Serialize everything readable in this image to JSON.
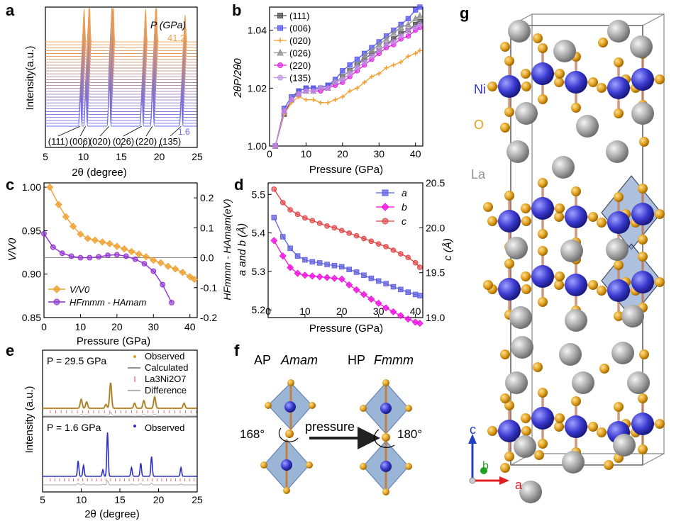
{
  "panel_letters": {
    "a": "a",
    "b": "b",
    "c": "c",
    "d": "d",
    "e": "e",
    "f": "f",
    "g": "g"
  },
  "chart_data": [
    {
      "panel": "a",
      "type": "line",
      "description_visible": "stacked XRD patterns",
      "xlabel": "2θ (degree)",
      "ylabel": "Intensity(a.u.)",
      "xlim": [
        5,
        25
      ],
      "xticks": [
        5,
        10,
        15,
        20,
        25
      ],
      "legend_title": "P (GPa)",
      "pressure_top": "41.2",
      "pressure_bottom": "1.6",
      "peak_labels": [
        "(111)",
        "(006)",
        "(020)",
        "(026)",
        "(220)",
        "(135)"
      ],
      "peak_positions": [
        9.6,
        10.3,
        13.4,
        17.7,
        19.1,
        22.9
      ],
      "colors": {
        "low": "#6a6af0",
        "high": "#f0a050"
      }
    },
    {
      "panel": "b",
      "type": "line",
      "xlabel": "Pressure (GPa)",
      "ylabel": "2θP/2θ0",
      "xlim": [
        0,
        42
      ],
      "ylim": [
        1.0,
        1.048
      ],
      "xticks": [
        0,
        10,
        20,
        30,
        40
      ],
      "yticks": [
        1.0,
        1.02,
        1.04
      ],
      "ytick_labels": [
        "1.00",
        "1.02",
        "1.04"
      ],
      "x": [
        1.6,
        4,
        6,
        8,
        10,
        12,
        14,
        16,
        18,
        20,
        22,
        24,
        26,
        28,
        30,
        32,
        34,
        36,
        38,
        40,
        41.2
      ],
      "series": [
        {
          "name": "(111)",
          "color": "#505050",
          "marker": "square",
          "values": [
            1.0,
            1.011,
            1.016,
            1.019,
            1.02,
            1.02,
            1.02,
            1.021,
            1.022,
            1.024,
            1.026,
            1.028,
            1.03,
            1.032,
            1.033,
            1.035,
            1.037,
            1.039,
            1.04,
            1.042,
            1.043
          ]
        },
        {
          "name": "(006)",
          "color": "#5a5af0",
          "marker": "square",
          "values": [
            1.0,
            1.013,
            1.017,
            1.019,
            1.02,
            1.02,
            1.02,
            1.021,
            1.023,
            1.026,
            1.028,
            1.03,
            1.032,
            1.034,
            1.036,
            1.038,
            1.04,
            1.042,
            1.044,
            1.047,
            1.048
          ]
        },
        {
          "name": "(020)",
          "color": "#f0a030",
          "marker": "star",
          "values": [
            1.0,
            1.011,
            1.015,
            1.017,
            1.016,
            1.016,
            1.015,
            1.015,
            1.016,
            1.017,
            1.019,
            1.02,
            1.022,
            1.024,
            1.025,
            1.027,
            1.028,
            1.029,
            1.031,
            1.032,
            1.033
          ]
        },
        {
          "name": "(026)",
          "color": "#909090",
          "marker": "triangle",
          "values": [
            1.0,
            1.012,
            1.016,
            1.018,
            1.019,
            1.019,
            1.02,
            1.02,
            1.022,
            1.024,
            1.026,
            1.028,
            1.031,
            1.033,
            1.035,
            1.037,
            1.039,
            1.041,
            1.042,
            1.044,
            1.045
          ]
        },
        {
          "name": "(220)",
          "color": "#e020e0",
          "marker": "circle",
          "values": [
            1.0,
            1.012,
            1.016,
            1.018,
            1.019,
            1.019,
            1.019,
            1.02,
            1.021,
            1.022,
            1.024,
            1.026,
            1.028,
            1.03,
            1.032,
            1.034,
            1.035,
            1.037,
            1.038,
            1.04,
            1.041
          ]
        },
        {
          "name": "(135)",
          "color": "#c090e8",
          "marker": "circle",
          "values": [
            1.0,
            1.012,
            1.016,
            1.018,
            1.019,
            1.019,
            1.02,
            1.02,
            1.022,
            1.023,
            1.025,
            1.027,
            1.029,
            1.031,
            1.033,
            1.035,
            1.036,
            1.038,
            1.04,
            1.041,
            1.042
          ]
        }
      ]
    },
    {
      "panel": "c",
      "type": "line",
      "xlabel": "Pressure (GPa)",
      "ylabel_left": "V/V0",
      "ylabel_right": "HFmmm - HAmam(eV)",
      "xlim": [
        0,
        42
      ],
      "ylim_left": [
        0.85,
        1.005
      ],
      "ylim_right": [
        -0.2,
        0.25
      ],
      "xticks": [
        0,
        10,
        20,
        30,
        40
      ],
      "yticks_left": [
        0.85,
        0.9,
        0.95,
        1.0
      ],
      "ytick_labels_left": [
        "0.85",
        "0.90",
        "0.95",
        "1.00"
      ],
      "yticks_right": [
        -0.2,
        -0.1,
        0.0,
        0.1,
        0.2
      ],
      "ytick_labels_right": [
        "-0.2",
        "-0.1",
        "0.0",
        "0.1",
        "0.2"
      ],
      "series": [
        {
          "name": "V/V0",
          "axis": "left",
          "color": "#f0a030",
          "marker": "diamond",
          "x": [
            1.6,
            4,
            6,
            8,
            10,
            12,
            14,
            16,
            18,
            20,
            22,
            24,
            26,
            28,
            30,
            32,
            34,
            36,
            38,
            40,
            41.2
          ],
          "values": [
            1.0,
            0.98,
            0.966,
            0.955,
            0.946,
            0.941,
            0.939,
            0.937,
            0.935,
            0.932,
            0.929,
            0.926,
            0.923,
            0.92,
            0.916,
            0.913,
            0.909,
            0.906,
            0.902,
            0.897,
            0.894
          ]
        },
        {
          "name": "HFmmm - HAmam",
          "axis": "right",
          "color": "#9030d0",
          "marker": "circle",
          "x": [
            0,
            2.5,
            5,
            7.5,
            10,
            12.5,
            15,
            17.5,
            20,
            22.5,
            25,
            27.5,
            30,
            32.5,
            35
          ],
          "values": [
            0.08,
            0.035,
            0.015,
            0.005,
            0.0,
            0.0,
            0.003,
            0.008,
            0.01,
            0.005,
            -0.005,
            -0.02,
            -0.045,
            -0.09,
            -0.15
          ]
        }
      ],
      "reference_line": 0.0
    },
    {
      "panel": "d",
      "type": "line",
      "xlabel": "Pressure (GPa)",
      "ylabel_left": "a and b (Å)",
      "ylabel_right": "c (Å)",
      "xlim": [
        0,
        42
      ],
      "ylim_left": [
        5.18,
        5.53
      ],
      "ylim_right": [
        19.0,
        20.5
      ],
      "xticks": [
        0,
        10,
        20,
        30,
        40
      ],
      "yticks_left": [
        5.2,
        5.3,
        5.4,
        5.5
      ],
      "ytick_labels_left": [
        "5.2",
        "5.3",
        "5.4",
        "5.5"
      ],
      "yticks_right": [
        19.0,
        19.5,
        20.0,
        20.5
      ],
      "ytick_labels_right": [
        "19.0",
        "19.5",
        "20.0",
        "20.5"
      ],
      "x": [
        1.6,
        4,
        6,
        8,
        10,
        12,
        14,
        16,
        18,
        20,
        22,
        24,
        26,
        28,
        30,
        32,
        34,
        36,
        38,
        40,
        41.2
      ],
      "series": [
        {
          "name": "a",
          "axis": "left",
          "color": "#6060e0",
          "marker": "square",
          "values": [
            5.44,
            5.39,
            5.36,
            5.34,
            5.33,
            5.325,
            5.322,
            5.318,
            5.315,
            5.312,
            5.305,
            5.298,
            5.29,
            5.282,
            5.275,
            5.268,
            5.26,
            5.253,
            5.246,
            5.24,
            5.237
          ]
        },
        {
          "name": "b",
          "axis": "left",
          "color": "#f010e0",
          "marker": "diamond",
          "values": [
            5.38,
            5.34,
            5.31,
            5.295,
            5.29,
            5.288,
            5.286,
            5.284,
            5.282,
            5.28,
            5.265,
            5.252,
            5.24,
            5.228,
            5.217,
            5.205,
            5.195,
            5.185,
            5.176,
            5.168,
            5.165
          ]
        },
        {
          "name": "c",
          "axis": "right",
          "color": "#e04040",
          "marker": "circle",
          "values": [
            20.43,
            20.28,
            20.2,
            20.15,
            20.11,
            20.08,
            20.05,
            20.02,
            20.0,
            19.97,
            19.94,
            19.91,
            19.88,
            19.85,
            19.82,
            19.79,
            19.75,
            19.71,
            19.67,
            19.61,
            19.56
          ]
        }
      ]
    },
    {
      "panel": "e",
      "type": "line",
      "xlabel": "2θ (degree)",
      "ylabel": "Intensity (a.u.)",
      "xlim": [
        5,
        25
      ],
      "xticks": [
        5,
        10,
        15,
        20,
        25
      ],
      "top": {
        "pressure_label": "P = 29.5 GPa",
        "legend": [
          "Observed",
          "Calculated",
          "La3Ni2O7",
          "Difference"
        ],
        "colors": {
          "observed": "#e0a020",
          "calculated": "#707070",
          "ticks": "#e04040",
          "difference": "#999999"
        }
      },
      "bottom": {
        "pressure_label": "P = 1.6 GPa",
        "legend": [
          "Observed"
        ],
        "colors": {
          "observed": "#3030c0"
        }
      },
      "peak_positions": [
        9.6,
        10.3,
        12.8,
        13.4,
        16.5,
        17.7,
        19.1,
        22.9
      ]
    }
  ],
  "panel_f": {
    "left_phase": "AP",
    "left_group": "Amam",
    "right_phase": "HP",
    "right_group": "Fmmm",
    "left_angle": "168°",
    "right_angle": "180°",
    "arrow_label": "pressure"
  },
  "panel_g": {
    "atoms": [
      "Ni",
      "O",
      "La"
    ],
    "atom_colors": {
      "Ni": "#3a3ad0",
      "O": "#e0a020",
      "La": "#a0a0a0"
    },
    "axes": {
      "a": "a",
      "b": "b",
      "c": "c"
    },
    "axis_colors": {
      "a": "#e02020",
      "b": "#20a020",
      "c": "#2040c0"
    }
  }
}
